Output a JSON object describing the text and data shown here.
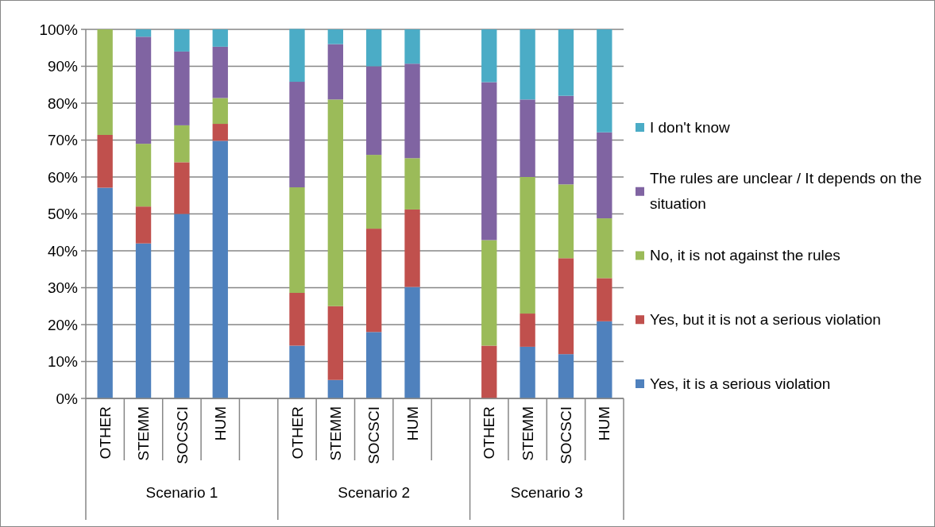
{
  "chart_data": {
    "type": "bar",
    "stacked": true,
    "categories": [
      "OTHER",
      "STEMM",
      "SOCSCI",
      "HUM",
      null,
      "OTHER",
      "STEMM",
      "SOCSCI",
      "HUM",
      null,
      "OTHER",
      "STEMM",
      "SOCSCI",
      "HUM"
    ],
    "series": [
      {
        "name": "Yes, it is a serious violation",
        "color": "#4f81bd",
        "values": [
          57.1,
          42,
          50,
          69.8,
          null,
          14.3,
          5,
          18,
          30.2,
          null,
          0,
          14,
          12,
          20.9
        ]
      },
      {
        "name": "Yes, but it is not a serious violation",
        "color": "#c0504d",
        "values": [
          14.3,
          10,
          14,
          4.6,
          null,
          14.3,
          20,
          28,
          21,
          null,
          14.3,
          9,
          26,
          11.7
        ]
      },
      {
        "name": "No, it is not against the rules",
        "color": "#9bbb59",
        "values": [
          28.6,
          17,
          10,
          7,
          null,
          28.6,
          56,
          20,
          13.9,
          null,
          28.6,
          37,
          20,
          16.2
        ]
      },
      {
        "name": "The rules are unclear / It depends on the situation",
        "color": "#8064a2",
        "values": [
          0,
          29,
          20,
          13.9,
          null,
          28.6,
          15,
          24,
          25.6,
          null,
          42.8,
          21,
          24,
          23.3
        ]
      },
      {
        "name": "I don't know",
        "color": "#4bacc6",
        "values": [
          0,
          2,
          6,
          4.7,
          null,
          14.3,
          4,
          10,
          9.3,
          null,
          14.3,
          19,
          18,
          27.9
        ]
      }
    ],
    "annotations": [
      "Scenario 1",
      "Scenario 2",
      "Scenario 3"
    ],
    "ylim": [
      0,
      100
    ],
    "yticks": [
      {
        "value": 0,
        "label": "0%"
      },
      {
        "value": 10,
        "label": "10%"
      },
      {
        "value": 20,
        "label": "20%"
      },
      {
        "value": 30,
        "label": "30%"
      },
      {
        "value": 40,
        "label": "40%"
      },
      {
        "value": 50,
        "label": "50%"
      },
      {
        "value": 60,
        "label": "60%"
      },
      {
        "value": 70,
        "label": "70%"
      },
      {
        "value": 80,
        "label": "80%"
      },
      {
        "value": 90,
        "label": "90%"
      },
      {
        "value": 100,
        "label": "100%"
      }
    ],
    "grid": "y",
    "legend": "right"
  }
}
